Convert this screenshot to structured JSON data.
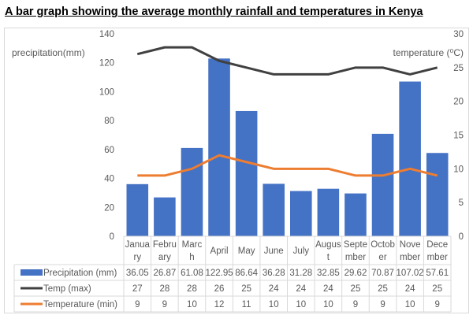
{
  "title": "A bar graph showing the average monthly rainfall and temperatures in Kenya",
  "chart_data": {
    "type": "bar",
    "categories": [
      "January",
      "February",
      "March",
      "April",
      "May",
      "June",
      "July",
      "August",
      "September",
      "October",
      "November",
      "December"
    ],
    "category_labels": [
      [
        "Janua",
        "ry"
      ],
      [
        "Febru",
        "ary"
      ],
      [
        "Marc",
        "h"
      ],
      [
        "April"
      ],
      [
        "May"
      ],
      [
        "June"
      ],
      [
        "July"
      ],
      [
        "Augus",
        "t"
      ],
      [
        "Septe",
        "mber"
      ],
      [
        "Octob",
        "er"
      ],
      [
        "Nove",
        "mber"
      ],
      [
        "Dece",
        "mber"
      ]
    ],
    "series": [
      {
        "name": "Precipitation (mm)",
        "type": "bar",
        "axis": "left",
        "color": "#4472C4",
        "values": [
          36.05,
          26.87,
          61.08,
          122.95,
          86.64,
          36.28,
          31.28,
          32.85,
          29.62,
          70.87,
          107.02,
          57.61
        ]
      },
      {
        "name": "Temp (max)",
        "type": "line",
        "axis": "right",
        "color": "#404040",
        "values": [
          27,
          28,
          28,
          26,
          25,
          24,
          24,
          24,
          25,
          25,
          24,
          25
        ]
      },
      {
        "name": "Temperature (min)",
        "type": "line",
        "axis": "right",
        "color": "#ED7D31",
        "values": [
          9,
          9,
          10,
          12,
          11,
          10,
          10,
          10,
          9,
          9,
          10,
          9
        ]
      }
    ],
    "ylabel": "precipitation(mm)",
    "y2label": "temperature (⁰C)",
    "ylim": [
      0,
      140
    ],
    "yticks": [
      "0",
      "20",
      "40",
      "60",
      "80",
      "100",
      "120",
      "140"
    ],
    "y2lim": [
      0,
      30
    ],
    "y2ticks": [
      "0",
      "5",
      "10",
      "15",
      "20",
      "25",
      "30"
    ],
    "grid": false,
    "legend": "data-table"
  }
}
